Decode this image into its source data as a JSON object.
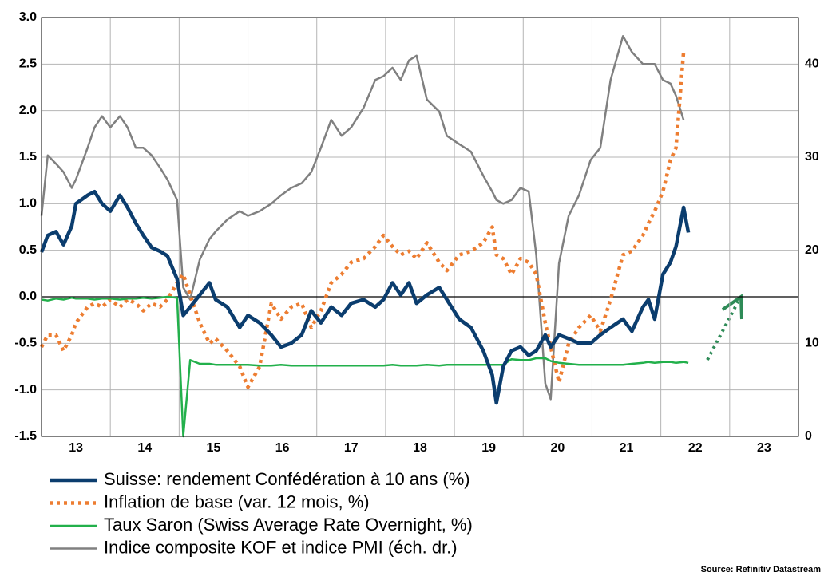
{
  "chart_data": {
    "type": "line",
    "source": "Source: Refinitiv Datastream",
    "xlim": [
      13,
      24
    ],
    "xticks": [
      13,
      14,
      15,
      16,
      17,
      18,
      19,
      20,
      21,
      22,
      23
    ],
    "ylim": [
      -1.5,
      3.0
    ],
    "yticks": [
      {
        "value": -1.5,
        "label": "-1.5"
      },
      {
        "value": -1.0,
        "label": "-1.0"
      },
      -0.5,
      {
        "value": 0,
        "label": "0.0"
      },
      0.5,
      {
        "value": 1.0,
        "label": "1.0"
      },
      1.5,
      {
        "value": 2.0,
        "label": "2.0"
      },
      2.5,
      {
        "value": 3.0,
        "label": "3.0"
      }
    ],
    "y2lim": [
      0,
      45
    ],
    "y2ticks": [
      0,
      10,
      20,
      30,
      40
    ],
    "grid": true,
    "x": [
      13.0,
      13.09,
      13.21,
      13.32,
      13.44,
      13.5,
      13.67,
      13.77,
      13.88,
      14.0,
      14.14,
      14.25,
      14.37,
      14.48,
      14.6,
      14.72,
      14.83,
      14.97,
      15.06,
      15.16,
      15.3,
      15.44,
      15.53,
      15.7,
      15.88,
      16.0,
      16.17,
      16.34,
      16.48,
      16.63,
      16.78,
      16.92,
      17.06,
      17.21,
      17.36,
      17.5,
      17.68,
      17.85,
      17.97,
      18.1,
      18.22,
      18.34,
      18.45,
      18.6,
      18.78,
      18.89,
      19.07,
      19.24,
      19.42,
      19.55,
      19.61,
      19.71,
      19.83,
      19.96,
      20.08,
      20.19,
      20.32,
      20.4,
      20.52,
      20.66,
      20.81,
      20.98,
      21.12,
      21.27,
      21.45,
      21.58,
      21.74,
      21.82,
      21.91,
      22.03,
      22.14,
      22.22,
      22.33,
      22.4
    ],
    "series": [
      {
        "name": "Suisse: rendement Confédération à 10 ans (%)",
        "color": "#0b3d6e",
        "width": 4.5,
        "style": "solid",
        "values": [
          0.48,
          0.66,
          0.7,
          0.56,
          0.76,
          1.0,
          1.09,
          1.13,
          1.0,
          0.92,
          1.09,
          0.96,
          0.79,
          0.66,
          0.53,
          0.49,
          0.44,
          0.19,
          -0.2,
          -0.11,
          0.02,
          0.15,
          -0.03,
          -0.11,
          -0.33,
          -0.2,
          -0.28,
          -0.41,
          -0.54,
          -0.5,
          -0.41,
          -0.15,
          -0.28,
          -0.11,
          -0.2,
          -0.07,
          -0.03,
          -0.11,
          -0.03,
          0.15,
          0.02,
          0.15,
          -0.07,
          0.02,
          0.1,
          -0.03,
          -0.24,
          -0.33,
          -0.58,
          -0.84,
          -1.14,
          -0.75,
          -0.58,
          -0.54,
          -0.63,
          -0.58,
          -0.41,
          -0.54,
          -0.41,
          -0.45,
          -0.5,
          -0.5,
          -0.41,
          -0.33,
          -0.24,
          -0.37,
          -0.11,
          -0.03,
          -0.24,
          0.24,
          0.37,
          0.54,
          0.96,
          0.69
        ]
      },
      {
        "name": "Inflation de base (var. 12 mois, %)",
        "color": "#ed7d31",
        "width": 4.5,
        "style": "dotted",
        "values": [
          -0.54,
          -0.41,
          -0.41,
          -0.58,
          -0.41,
          -0.28,
          -0.11,
          -0.07,
          -0.11,
          -0.03,
          -0.11,
          -0.03,
          -0.07,
          -0.15,
          -0.07,
          -0.11,
          -0.03,
          0.15,
          0.24,
          0.02,
          -0.28,
          -0.5,
          -0.45,
          -0.58,
          -0.75,
          -0.97,
          -0.75,
          -0.07,
          -0.24,
          -0.11,
          -0.07,
          -0.33,
          -0.15,
          0.15,
          0.24,
          0.37,
          0.41,
          0.54,
          0.66,
          0.54,
          0.45,
          0.49,
          0.41,
          0.58,
          0.37,
          0.28,
          0.45,
          0.49,
          0.58,
          0.75,
          0.45,
          0.41,
          0.24,
          0.41,
          0.37,
          0.24,
          -0.28,
          -0.54,
          -0.92,
          -0.5,
          -0.33,
          -0.2,
          -0.37,
          -0.03,
          0.45,
          0.49,
          0.66,
          0.79,
          0.92,
          1.13,
          1.47,
          1.6,
          2.63,
          null
        ]
      },
      {
        "name": "Taux Saron (Swiss Average Rate Overnight, %)",
        "color": "#22b04b",
        "width": 2.5,
        "style": "solid",
        "values": [
          -0.03,
          -0.04,
          -0.02,
          -0.03,
          -0.01,
          -0.02,
          -0.02,
          -0.03,
          -0.02,
          -0.02,
          -0.03,
          -0.02,
          -0.02,
          -0.01,
          -0.02,
          -0.01,
          0.0,
          -0.01,
          -1.5,
          -0.68,
          -0.72,
          -0.72,
          -0.73,
          -0.73,
          -0.73,
          -0.73,
          -0.74,
          -0.74,
          -0.73,
          -0.74,
          -0.74,
          -0.74,
          -0.74,
          -0.74,
          -0.74,
          -0.74,
          -0.74,
          -0.74,
          -0.74,
          -0.73,
          -0.74,
          -0.74,
          -0.74,
          -0.73,
          -0.74,
          -0.73,
          -0.73,
          -0.73,
          -0.73,
          -0.73,
          -0.73,
          -0.73,
          -0.67,
          -0.68,
          -0.68,
          -0.66,
          -0.66,
          -0.69,
          -0.71,
          -0.72,
          -0.73,
          -0.73,
          -0.73,
          -0.73,
          -0.73,
          -0.72,
          -0.71,
          -0.7,
          -0.71,
          -0.7,
          -0.7,
          -0.71,
          -0.7,
          -0.71
        ]
      },
      {
        "name": "Indice composite KOF et indice PMI (éch. dr.)",
        "color": "#808080",
        "width": 2.5,
        "style": "solid",
        "axis": "y2",
        "values": [
          23.7,
          30.2,
          29.3,
          28.4,
          26.7,
          27.6,
          31.0,
          33.2,
          34.4,
          33.2,
          34.4,
          33.2,
          31.0,
          31.0,
          30.2,
          28.9,
          27.6,
          25.4,
          16.0,
          14.7,
          19.0,
          21.2,
          22.0,
          23.3,
          24.2,
          23.7,
          24.2,
          25.0,
          25.9,
          26.7,
          27.2,
          28.4,
          31.0,
          34.0,
          32.3,
          33.2,
          35.3,
          38.3,
          38.7,
          39.6,
          38.3,
          40.4,
          40.9,
          36.2,
          34.9,
          32.3,
          31.4,
          30.6,
          28.0,
          26.3,
          25.4,
          25.0,
          25.4,
          26.7,
          26.3,
          19.5,
          5.7,
          4.0,
          18.6,
          23.7,
          25.9,
          29.7,
          31.0,
          38.3,
          43.0,
          41.3,
          40.0,
          40.0,
          40.0,
          38.3,
          37.9,
          36.6,
          34.0,
          null
        ]
      }
    ]
  }
}
